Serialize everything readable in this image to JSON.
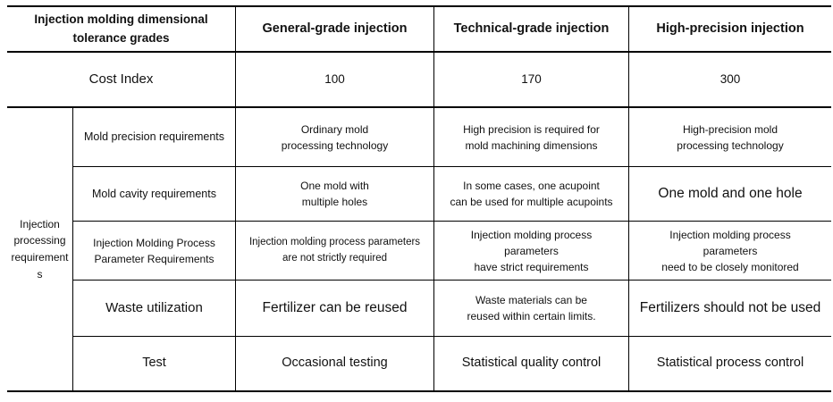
{
  "header": {
    "tolerance_grades": "Injection molding dimensional\ntolerance grades",
    "columns": [
      "General-grade injection",
      "Technical-grade injection",
      "High-precision injection"
    ]
  },
  "cost_index": {
    "label": "Cost Index",
    "values": [
      "100",
      "170",
      "300"
    ]
  },
  "injection_processing": {
    "group_label": "Injection processing requirements",
    "rows": [
      {
        "label": "Mold precision requirements",
        "general": "Ordinary mold\nprocessing technology",
        "technical": "High precision is required for\nmold machining dimensions",
        "high_precision": "High-precision mold\nprocessing technology"
      },
      {
        "label": "Mold cavity requirements",
        "general": "One mold with\nmultiple holes",
        "technical": "In some cases, one acupoint\ncan be used for multiple acupoints",
        "high_precision": "One mold and one hole"
      },
      {
        "label": "Injection Molding Process\nParameter Requirements",
        "general": "Injection molding process parameters\nare not strictly required",
        "technical": "Injection molding process\nparameters\nhave strict requirements",
        "high_precision": "Injection molding process\nparameters\nneed to be closely monitored"
      },
      {
        "label": "Waste utilization",
        "general": "Fertilizer can be reused",
        "technical": "Waste materials can be\nreused within certain limits.",
        "high_precision": "Fertilizers should not be used"
      },
      {
        "label": "Test",
        "general": "Occasional testing",
        "technical": "Statistical quality control",
        "high_precision": "Statistical process control"
      }
    ]
  },
  "colors": {
    "text": "#111111",
    "line": "#000000",
    "background": "#ffffff"
  }
}
